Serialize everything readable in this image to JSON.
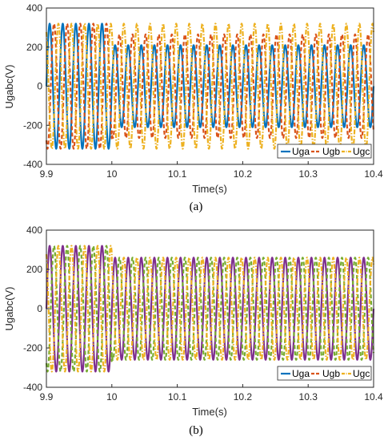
{
  "chart_data": [
    {
      "type": "line",
      "caption": "(a)",
      "xlabel": "Time(s)",
      "ylabel": "Ugabc(V)",
      "xlim": [
        9.9,
        10.4
      ],
      "ylim": [
        -400,
        400
      ],
      "xticks": [
        "9.9",
        "10",
        "10.1",
        "10.2",
        "10.3",
        "10.4"
      ],
      "yticks": [
        "400",
        "200",
        "0",
        "-200",
        "-400"
      ],
      "grid": false,
      "legend_position": "bottom-right",
      "frequency_hz": 50,
      "switch_time": 10,
      "series": [
        {
          "name": "Uga",
          "color": "#0072BD",
          "style": "solid",
          "phase_deg": 0,
          "amplitude_before": 320,
          "amplitude_after": 210
        },
        {
          "name": "Ugb",
          "color": "#D95319",
          "style": "dashed",
          "phase_deg": -120,
          "amplitude_before": 320,
          "amplitude_after": 265
        },
        {
          "name": "Ugc",
          "color": "#EDB120",
          "style": "dashdot",
          "phase_deg": 120,
          "amplitude_before": 320,
          "amplitude_after": 320
        }
      ]
    },
    {
      "type": "line",
      "caption": "(b)",
      "xlabel": "Time(s)",
      "ylabel": "Ugabc(V)",
      "xlim": [
        9.9,
        10.4
      ],
      "ylim": [
        -400,
        400
      ],
      "xticks": [
        "9.9",
        "10",
        "10.1",
        "10.2",
        "10.3",
        "10.4"
      ],
      "yticks": [
        "400",
        "200",
        "0",
        "-200",
        "-400"
      ],
      "grid": false,
      "legend_position": "bottom-right",
      "frequency_hz": 50,
      "switch_time": 10,
      "series": [
        {
          "name": "Uga",
          "color": "#7E2F8E",
          "legend_color": "#0072BD",
          "style": "solid",
          "phase_deg": 0,
          "amplitude_before": 320,
          "amplitude_after": 260
        },
        {
          "name": "Ugb",
          "color": "#77AC30",
          "legend_color": "#D95319",
          "style": "dashed",
          "phase_deg": -120,
          "amplitude_before": 320,
          "amplitude_after": 260
        },
        {
          "name": "Ugc",
          "color": "#EDB120",
          "style": "dashdot",
          "phase_deg": 120,
          "amplitude_before": 320,
          "amplitude_after": 260
        }
      ]
    }
  ]
}
